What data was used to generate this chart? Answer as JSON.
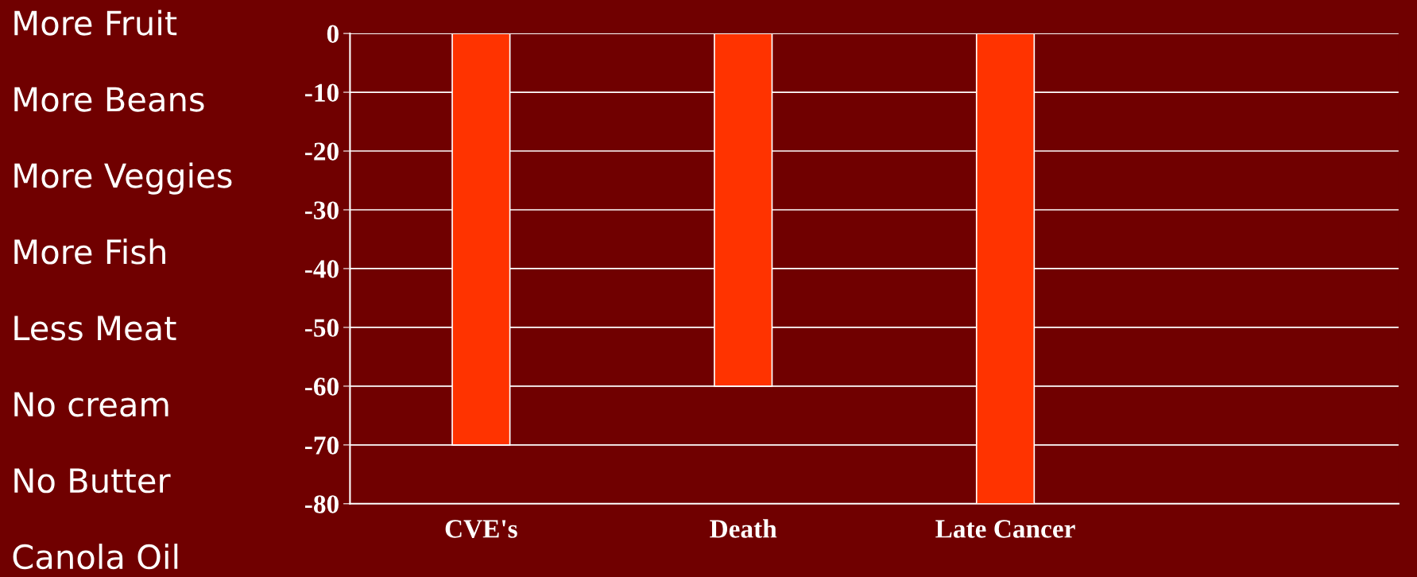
{
  "chart_data": {
    "type": "bar",
    "categories": [
      "CVE's",
      "Death",
      "Late Cancer",
      null
    ],
    "values": [
      -70,
      -60,
      -80,
      null
    ],
    "color": "#ff3300",
    "ylim": [
      -80,
      0
    ],
    "yticks": [
      0,
      -10,
      -20,
      -30,
      -40,
      -50,
      -60,
      -70,
      -80
    ],
    "grid": "y",
    "legend": false,
    "annotations": [
      "More Fruit",
      "More Beans",
      "More Veggies",
      "More Fish",
      "Less Meat",
      "No cream",
      "No Butter",
      "Canola Oil"
    ]
  }
}
